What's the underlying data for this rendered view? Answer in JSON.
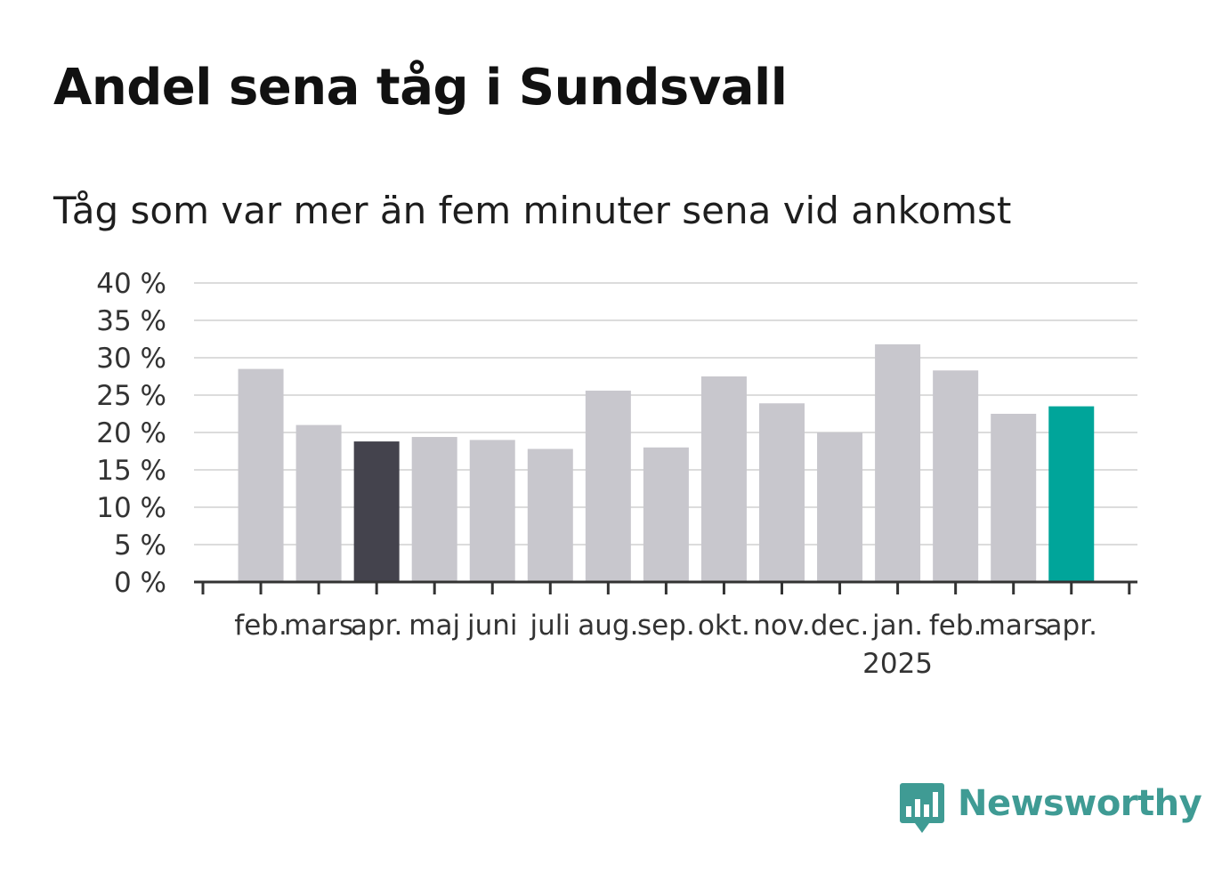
{
  "title": "Andel sena tåg i Sundsvall",
  "subtitle": "Tåg som var mer än fem minuter sena vid ankomst",
  "brand": {
    "name": "Newsworthy",
    "color": "#3f9b94",
    "icon": "bar-chart-speech-bubble-icon"
  },
  "chart_data": {
    "type": "bar",
    "categories": [
      "feb.",
      "mars",
      "apr.",
      "maj",
      "juni",
      "juli",
      "aug.",
      "sep.",
      "okt.",
      "nov.",
      "dec.",
      "jan.",
      "feb.",
      "mars",
      "apr."
    ],
    "category_sublabels": [
      "",
      "",
      "",
      "",
      "",
      "",
      "",
      "",
      "",
      "",
      "",
      "2025",
      "",
      "",
      ""
    ],
    "values": [
      28.5,
      21.0,
      18.8,
      19.4,
      19.0,
      17.8,
      25.6,
      18.0,
      27.5,
      23.9,
      20.0,
      31.8,
      28.3,
      22.5,
      23.5
    ],
    "ylim": [
      0,
      40
    ],
    "yticks": [
      0,
      5,
      10,
      15,
      20,
      25,
      30,
      35,
      40
    ],
    "ytick_labels": [
      "0 %",
      "5 %",
      "10 %",
      "15 %",
      "20 %",
      "25 %",
      "30 %",
      "35 %",
      "40 %"
    ],
    "xlabel": "",
    "ylabel": "",
    "grid": true,
    "legend": "none",
    "colors": {
      "default": "#c8c7cd",
      "highlight_previous": "#44434d",
      "highlight_current": "#00a59a",
      "grid": "#dcdcdc",
      "axis": "#333333"
    },
    "highlight": {
      "2": "highlight_previous",
      "14": "highlight_current"
    }
  }
}
